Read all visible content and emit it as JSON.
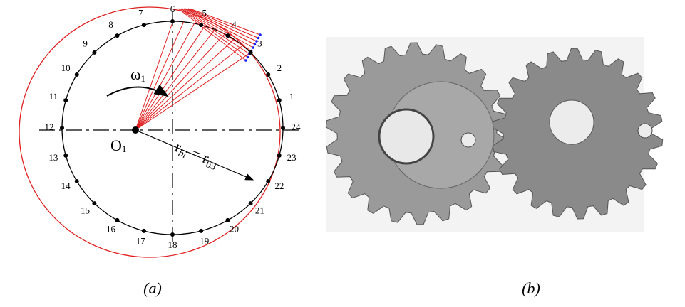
{
  "figure": {
    "panel_a": {
      "point_labels": [
        "1",
        "2",
        "3",
        "4",
        "5",
        "6",
        "7",
        "8",
        "9",
        "10",
        "11",
        "12",
        "13",
        "14",
        "15",
        "16",
        "17",
        "18",
        "19",
        "20",
        "21",
        "22",
        "23",
        "24"
      ],
      "center_label": {
        "base": "O",
        "sub": "1"
      },
      "omega_label": {
        "base": "ω",
        "sub": "1"
      },
      "radius_label": {
        "r1": "r",
        "sub1": "bi",
        "mid": " = r",
        "sub2": "b3"
      }
    },
    "captions": [
      "(a)",
      "(b)"
    ]
  }
}
